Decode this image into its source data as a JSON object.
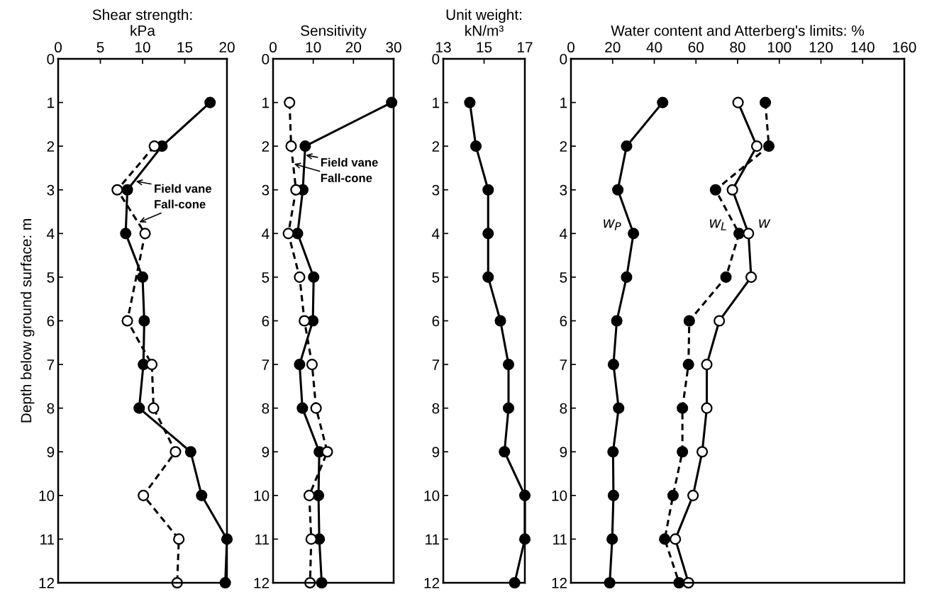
{
  "chart_data": [
    {
      "type": "line",
      "xlabel": "Shear strength:\nkPa",
      "ylabel": "Depth below ground surface: m",
      "xlim": [
        0,
        20
      ],
      "xticks": [
        0,
        5,
        10,
        15,
        20
      ],
      "ylim": [
        12,
        0
      ],
      "yticks": [
        0,
        1,
        2,
        3,
        4,
        5,
        6,
        7,
        8,
        9,
        10,
        11,
        12
      ],
      "marker": "circle",
      "series": [
        {
          "color": "#000000",
          "line_style": "solid",
          "x": [
            18,
            12.3,
            8.2,
            8.0,
            10.0,
            10.2,
            10.1,
            9.6,
            15.7,
            17.0,
            20,
            19.8
          ],
          "values": [
            1,
            2,
            3,
            4,
            5,
            6,
            7,
            8,
            9,
            10,
            11,
            12
          ]
        },
        {
          "color": "#ffffff",
          "line_style": "dashed",
          "x": [
            11.4,
            7.0,
            10.3,
            8.2,
            11.1,
            11.3,
            13.9,
            10.1,
            14.3,
            14.1
          ],
          "values": [
            2,
            3,
            4,
            6,
            7,
            8,
            9,
            10,
            11,
            12
          ]
        }
      ],
      "annotations": [
        {
          "text": "Field vane",
          "x": 9.1,
          "y": 2.8
        },
        {
          "text": "Fall-cone",
          "x": 9.5,
          "y": 3.75
        }
      ]
    },
    {
      "type": "line",
      "xlabel": "Sensitivity",
      "xlim": [
        0,
        30
      ],
      "xticks": [
        0,
        10,
        20,
        30
      ],
      "ylim": [
        12,
        0
      ],
      "yticks": [
        0,
        1,
        2,
        3,
        4,
        5,
        6,
        7,
        8,
        9,
        10,
        11,
        12
      ],
      "marker": "circle",
      "series": [
        {
          "color": "#000000",
          "line_style": "solid",
          "x": [
            29.5,
            8.0,
            7.4,
            6.1,
            10.1,
            9.9,
            6.6,
            7.3,
            11.5,
            11.3,
            11.5,
            12.1
          ],
          "values": [
            1,
            2,
            3,
            4,
            5,
            6,
            7,
            8,
            9,
            10,
            11,
            12
          ]
        },
        {
          "color": "#ffffff",
          "line_style": "dashed",
          "x": [
            4.1,
            4.5,
            5.7,
            3.8,
            6.6,
            7.8,
            9.7,
            10.7,
            13.5,
            9.0,
            9.5,
            9.2
          ],
          "values": [
            1,
            2,
            3,
            4,
            5,
            6,
            7,
            8,
            9,
            10,
            11,
            12
          ]
        }
      ],
      "annotations": [
        {
          "text": "Field vane",
          "x": 7.9,
          "y": 2.2
        },
        {
          "text": "Fall-cone",
          "x": 5.0,
          "y": 2.4
        }
      ]
    },
    {
      "type": "line",
      "xlabel": "Unit weight:\nkN/m³",
      "xlim": [
        13,
        17
      ],
      "xticks": [
        13,
        15,
        17
      ],
      "ylim": [
        12,
        0
      ],
      "yticks": [
        0,
        1,
        2,
        3,
        4,
        5,
        6,
        7,
        8,
        9,
        10,
        11,
        12
      ],
      "marker": "circle",
      "series": [
        {
          "color": "#000000",
          "line_style": "solid",
          "x": [
            14.3,
            14.6,
            15.2,
            15.2,
            15.2,
            15.8,
            16.2,
            16.2,
            16.0,
            17.0,
            17.0,
            16.5
          ],
          "values": [
            1,
            2,
            3,
            4,
            5,
            6,
            7,
            8,
            9,
            10,
            11,
            12
          ]
        }
      ]
    },
    {
      "type": "line",
      "xlabel": "Water content and Atterberg's limits: %",
      "xlim": [
        0,
        160
      ],
      "xticks": [
        0,
        20,
        40,
        60,
        80,
        100,
        120,
        140,
        160
      ],
      "ylim": [
        12,
        0
      ],
      "yticks": [
        0,
        1,
        2,
        3,
        4,
        5,
        6,
        7,
        8,
        9,
        10,
        11,
        12
      ],
      "marker": "circle",
      "series": [
        {
          "name": "w$_{P}$",
          "color": "#000000",
          "line_style": "solid",
          "x": [
            44,
            26.7,
            22.5,
            30,
            26.7,
            22,
            20.4,
            22.9,
            20.2,
            20.4,
            19.8,
            18.6
          ],
          "values": [
            1,
            2,
            3,
            4,
            5,
            6,
            7,
            8,
            9,
            10,
            11,
            12
          ]
        },
        {
          "name": "w$_{L}$",
          "color": "#000000",
          "line_style": "dashed",
          "x": [
            93.3,
            95,
            69.4,
            80.7,
            74.4,
            56.8,
            56.4,
            53.5,
            53.5,
            49,
            45,
            51.9
          ],
          "values": [
            1,
            2,
            3,
            4,
            5,
            6,
            7,
            8,
            9,
            10,
            11,
            12
          ]
        },
        {
          "name": "w",
          "color": "#ffffff",
          "line_style": "solid",
          "x": [
            80.2,
            89.2,
            77.5,
            85.2,
            86.5,
            71.2,
            65.2,
            65.2,
            63,
            58.6,
            50.1,
            56.4
          ],
          "values": [
            1,
            2,
            3,
            4,
            5,
            6,
            7,
            8,
            9,
            10,
            11,
            12
          ]
        }
      ],
      "legend": false
    }
  ]
}
